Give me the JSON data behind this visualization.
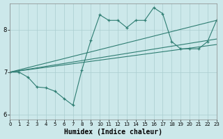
{
  "xlabel": "Humidex (Indice chaleur)",
  "bg_color": "#cce8ea",
  "line_color": "#2e7d72",
  "grid_color": "#aacdd0",
  "xlim": [
    0,
    23
  ],
  "ylim": [
    5.88,
    8.62
  ],
  "yticks": [
    6,
    7,
    8
  ],
  "xticks": [
    0,
    1,
    2,
    3,
    4,
    5,
    6,
    7,
    8,
    9,
    10,
    11,
    12,
    13,
    14,
    15,
    16,
    17,
    18,
    19,
    20,
    21,
    22,
    23
  ],
  "series": [
    {
      "x": [
        0,
        23
      ],
      "y": [
        7.0,
        8.22
      ],
      "has_markers": false
    },
    {
      "x": [
        0,
        23
      ],
      "y": [
        7.0,
        7.78
      ],
      "has_markers": false
    },
    {
      "x": [
        0,
        23
      ],
      "y": [
        7.0,
        7.65
      ],
      "has_markers": false
    },
    {
      "x": [
        0,
        1,
        2,
        3,
        4,
        5,
        6,
        7,
        8,
        9,
        10,
        11,
        12,
        13,
        14,
        15,
        16,
        17,
        18,
        19,
        20,
        21,
        22,
        23
      ],
      "y": [
        7.0,
        7.0,
        6.88,
        6.65,
        6.63,
        6.55,
        6.38,
        6.22,
        7.05,
        7.75,
        8.35,
        8.22,
        8.22,
        8.05,
        8.22,
        8.22,
        8.52,
        8.38,
        7.72,
        7.55,
        7.55,
        7.55,
        7.72,
        8.22
      ],
      "has_markers": true
    }
  ]
}
